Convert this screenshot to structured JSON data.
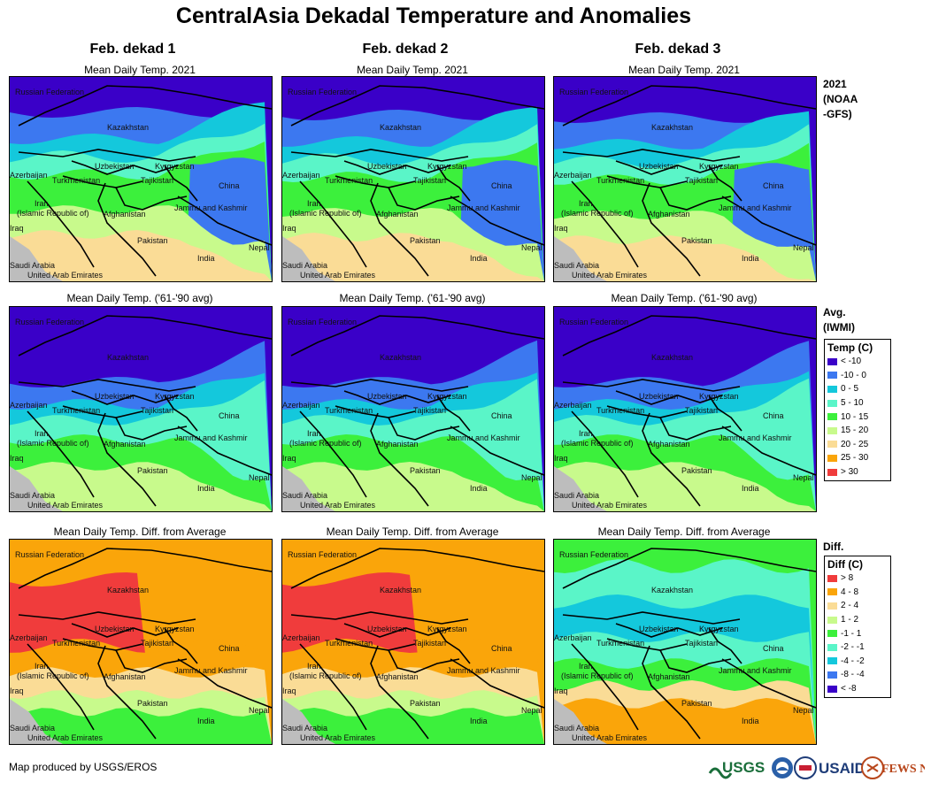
{
  "title": "CentralAsia Dekadal Temperature and Anomalies",
  "columns": [
    "Feb. dekad 1",
    "Feb. dekad 2",
    "Feb. dekad 3"
  ],
  "row_titles": [
    "Mean Daily Temp. 2021",
    "Mean Daily Temp. ('61-'90 avg)",
    "Mean Daily Temp. Diff. from Average"
  ],
  "row_labels": {
    "current": [
      "2021",
      "(NOAA",
      "-GFS)"
    ],
    "average": [
      "Avg.",
      "(IWMI)"
    ],
    "diff": [
      "Diff."
    ]
  },
  "map_labels": {
    "russia": "Russian Federation",
    "kazakhstan": "Kazakhstan",
    "uzbekistan": "Uzbekistan",
    "kyrgyzstan": "Kyrgyzstan",
    "tajikistan": "Tajikistan",
    "turkmenistan": "Turkmenistan",
    "azerbaijan": "Azerbaijan",
    "iran": "Iran",
    "iran_sub": "(Islamic Republic of)",
    "afghanistan": "Afghanistan",
    "jammu": "Jammu and Kashmir",
    "china": "China",
    "pakistan": "Pakistan",
    "india": "India",
    "nepal": "Nepal",
    "iraq": "Iraq",
    "saudi": "Saudi Arabia",
    "uae": "United Arab Emirates"
  },
  "temp_legend": {
    "title": "Temp (C)",
    "items": [
      {
        "label": "< -10",
        "color": "#3a00c8"
      },
      {
        "label": "-10 - 0",
        "color": "#3c78f0"
      },
      {
        "label": "0 - 5",
        "color": "#14c8dc"
      },
      {
        "label": "5 - 10",
        "color": "#5af5c8"
      },
      {
        "label": "10 - 15",
        "color": "#3cf03c"
      },
      {
        "label": "15 - 20",
        "color": "#c8fa8c"
      },
      {
        "label": "20 - 25",
        "color": "#fadc96"
      },
      {
        "label": "25 - 30",
        "color": "#faa50a"
      },
      {
        "label": "> 30",
        "color": "#f03c3c"
      }
    ]
  },
  "diff_legend": {
    "title": "Diff (C)",
    "items": [
      {
        "label": "> 8",
        "color": "#f03c3c"
      },
      {
        "label": "4 - 8",
        "color": "#faa50a"
      },
      {
        "label": "2 - 4",
        "color": "#fadc96"
      },
      {
        "label": "1 - 2",
        "color": "#c8fa8c"
      },
      {
        "label": "-1 - 1",
        "color": "#3cf03c"
      },
      {
        "label": "-2 - -1",
        "color": "#5af5c8"
      },
      {
        "label": "-4 - -2",
        "color": "#14c8dc"
      },
      {
        "label": "-8 - -4",
        "color": "#3c78f0"
      },
      {
        "label": "< -8",
        "color": "#3a00c8"
      }
    ]
  },
  "credit": "Map produced by USGS/EROS",
  "logos": {
    "usgs": "USGS",
    "usaid": "USAID",
    "fewsnet": "FEWS NET"
  }
}
